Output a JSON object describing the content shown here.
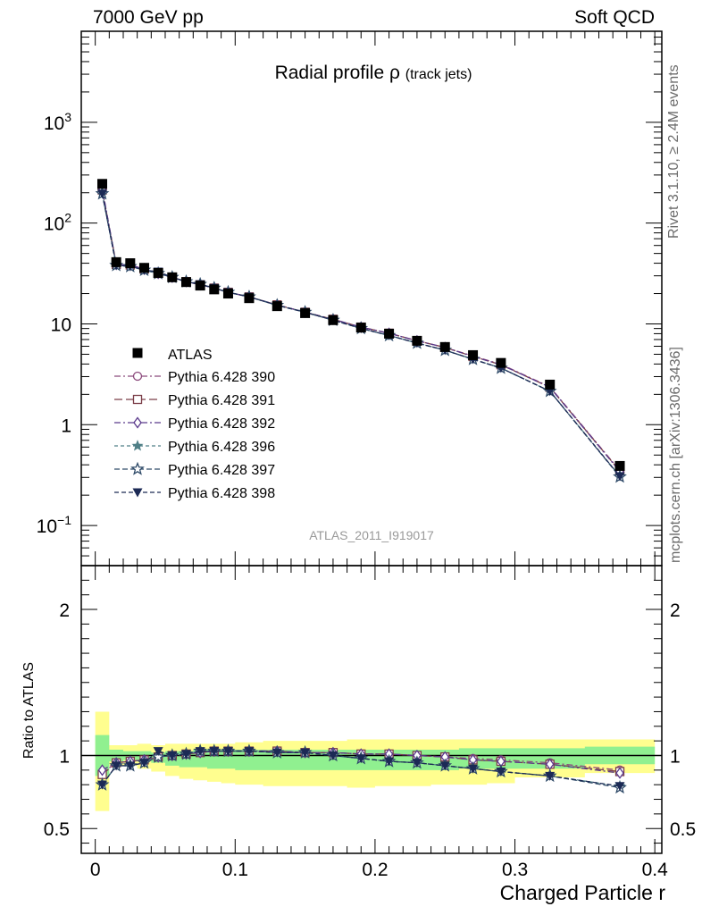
{
  "header": {
    "left": "7000 GeV pp",
    "right": "Soft QCD",
    "side_top": "Rivet 3.1.10, ≥ 2.4M events",
    "side_bottom": "mcplots.cern.ch [arXiv:1306.3436]"
  },
  "chart_data": [
    {
      "type": "line",
      "title": "Radial profile ρ (track jets)",
      "title_main": "Radial profile ρ",
      "title_sub": "(track jets)",
      "watermark": "ATLAS_2011_I919017",
      "yscale": "log",
      "ylim": [
        0.04,
        8000
      ],
      "y_ticks": [
        0.1,
        1,
        10,
        100,
        1000
      ],
      "y_tick_labels": [
        "10⁻¹",
        "1",
        "10",
        "10²",
        "10³"
      ],
      "x": [
        0.005,
        0.015,
        0.025,
        0.035,
        0.045,
        0.055,
        0.065,
        0.075,
        0.085,
        0.095,
        0.11,
        0.13,
        0.15,
        0.17,
        0.19,
        0.21,
        0.23,
        0.25,
        0.27,
        0.29,
        0.325,
        0.375
      ],
      "reference": {
        "name": "ATLAS",
        "values": [
          245,
          41,
          40,
          36,
          32,
          29,
          26,
          24,
          22,
          20,
          18,
          15,
          12.8,
          10.9,
          9.2,
          8.0,
          6.8,
          5.9,
          4.9,
          4.1,
          2.5,
          0.39
        ]
      },
      "series": [
        {
          "name": "Pythia 6.428 390",
          "color": "#8b4a7c",
          "marker": "circle-open",
          "dash": "7,3,2,3",
          "ratio": [
            0.88,
            0.95,
            0.96,
            0.97,
            0.99,
            1.0,
            1.01,
            1.02,
            1.03,
            1.03,
            1.03,
            1.03,
            1.02,
            1.02,
            1.01,
            1.01,
            1.0,
            0.99,
            0.98,
            0.97,
            0.95,
            0.9
          ]
        },
        {
          "name": "Pythia 6.428 391",
          "color": "#7a3d47",
          "marker": "square-open",
          "dash": "9,4",
          "ratio": [
            0.87,
            0.95,
            0.96,
            0.97,
            0.99,
            1.0,
            1.01,
            1.02,
            1.03,
            1.03,
            1.03,
            1.03,
            1.02,
            1.02,
            1.01,
            1.01,
            1.0,
            0.99,
            0.97,
            0.96,
            0.94,
            0.89
          ]
        },
        {
          "name": "Pythia 6.428 392",
          "color": "#5b3a8c",
          "marker": "diamond-open",
          "dash": "7,3,2,3",
          "ratio": [
            0.9,
            0.95,
            0.96,
            0.97,
            0.99,
            1.0,
            1.01,
            1.02,
            1.03,
            1.03,
            1.03,
            1.03,
            1.02,
            1.02,
            1.01,
            1.01,
            1.0,
            0.99,
            0.97,
            0.96,
            0.94,
            0.88
          ]
        },
        {
          "name": "Pythia 6.428 396",
          "color": "#4f7f86",
          "marker": "star-filled",
          "dash": "4,3",
          "ratio": [
            0.8,
            0.93,
            0.93,
            0.95,
            0.99,
            1.0,
            1.01,
            1.03,
            1.03,
            1.03,
            1.03,
            1.02,
            1.02,
            1.0,
            0.98,
            0.96,
            0.95,
            0.93,
            0.91,
            0.89,
            0.86,
            0.79
          ]
        },
        {
          "name": "Pythia 6.428 397",
          "color": "#2e4a68",
          "marker": "star-open",
          "dash": "6,3",
          "ratio": [
            0.8,
            0.93,
            0.93,
            0.95,
            0.99,
            1.0,
            1.01,
            1.03,
            1.03,
            1.03,
            1.03,
            1.02,
            1.02,
            1.0,
            0.98,
            0.96,
            0.95,
            0.93,
            0.91,
            0.89,
            0.86,
            0.78
          ]
        },
        {
          "name": "Pythia 6.428 398",
          "color": "#1c2a55",
          "marker": "triangle-down-filled",
          "dash": "5,3",
          "ratio": [
            0.8,
            0.93,
            0.93,
            0.95,
            1.03,
            1.0,
            1.01,
            1.03,
            1.03,
            1.03,
            1.03,
            1.02,
            1.02,
            1.0,
            0.98,
            0.96,
            0.95,
            0.93,
            0.91,
            0.89,
            0.86,
            0.79
          ]
        }
      ]
    },
    {
      "type": "line",
      "ylabel": "Ratio to ATLAS",
      "xlabel": "Charged Particle r",
      "xlim": [
        -0.01,
        0.405
      ],
      "x_ticks": [
        0,
        0.1,
        0.2,
        0.3,
        0.4
      ],
      "x_tick_labels": [
        "0",
        "0.1",
        "0.2",
        "0.3",
        "0.4"
      ],
      "ylim": [
        0.33,
        2.3
      ],
      "y_ticks": [
        0.5,
        1,
        2
      ],
      "y_tick_labels": [
        "0.5",
        "1",
        "2"
      ],
      "band_x_edges": [
        0,
        0.01,
        0.02,
        0.03,
        0.04,
        0.05,
        0.06,
        0.07,
        0.08,
        0.09,
        0.1,
        0.12,
        0.14,
        0.16,
        0.18,
        0.2,
        0.22,
        0.24,
        0.26,
        0.28,
        0.3,
        0.35,
        0.4
      ],
      "band_inner": [
        [
          0.86,
          1.14
        ],
        [
          0.96,
          1.04
        ],
        [
          0.97,
          1.03
        ],
        [
          0.97,
          1.03
        ],
        [
          0.95,
          1.02
        ],
        [
          0.93,
          1.03
        ],
        [
          0.92,
          1.03
        ],
        [
          0.92,
          1.04
        ],
        [
          0.91,
          1.04
        ],
        [
          0.91,
          1.04
        ],
        [
          0.9,
          1.04
        ],
        [
          0.9,
          1.04
        ],
        [
          0.9,
          1.04
        ],
        [
          0.9,
          1.04
        ],
        [
          0.9,
          1.04
        ],
        [
          0.9,
          1.04
        ],
        [
          0.9,
          1.04
        ],
        [
          0.9,
          1.04
        ],
        [
          0.91,
          1.05
        ],
        [
          0.91,
          1.05
        ],
        [
          0.91,
          1.05
        ],
        [
          0.94,
          1.06
        ]
      ],
      "band_outer": [
        [
          0.62,
          1.3
        ],
        [
          0.93,
          1.07
        ],
        [
          0.93,
          1.07
        ],
        [
          0.91,
          1.08
        ],
        [
          0.89,
          1.07
        ],
        [
          0.86,
          1.08
        ],
        [
          0.84,
          1.08
        ],
        [
          0.83,
          1.08
        ],
        [
          0.82,
          1.08
        ],
        [
          0.81,
          1.08
        ],
        [
          0.8,
          1.09
        ],
        [
          0.79,
          1.1
        ],
        [
          0.79,
          1.1
        ],
        [
          0.79,
          1.1
        ],
        [
          0.78,
          1.11
        ],
        [
          0.79,
          1.11
        ],
        [
          0.79,
          1.11
        ],
        [
          0.8,
          1.11
        ],
        [
          0.8,
          1.11
        ],
        [
          0.81,
          1.11
        ],
        [
          0.85,
          1.11
        ],
        [
          0.88,
          1.11
        ]
      ],
      "band_colors": {
        "inner": "#90f090",
        "outer": "#fffe8f"
      },
      "reference_line": 1
    }
  ]
}
